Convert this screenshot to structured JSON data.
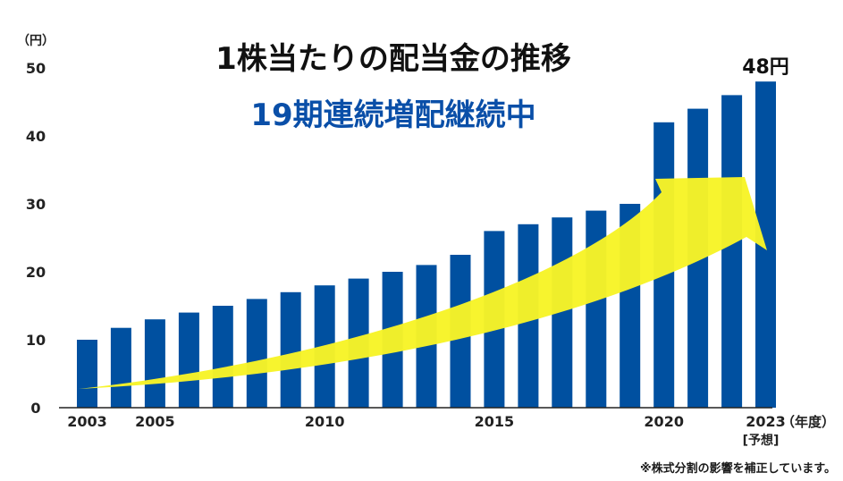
{
  "chart_data": {
    "type": "bar",
    "title": "1株当たりの配当金の推移",
    "subtitle": "19期連続増配継続中",
    "ylabel": "（円）",
    "xlabel": "（年度）",
    "ylim": [
      0,
      50
    ],
    "yticks": [
      "0",
      "10",
      "20",
      "30",
      "40",
      "50"
    ],
    "xtick_labels": [
      {
        "year": 2003,
        "label": "2003"
      },
      {
        "year": 2005,
        "label": "2005"
      },
      {
        "year": 2010,
        "label": "2010"
      },
      {
        "year": 2015,
        "label": "2015"
      },
      {
        "year": 2020,
        "label": "2020"
      },
      {
        "year": 2023,
        "label": "2023"
      }
    ],
    "forecast_label": "[予想]",
    "categories": [
      "2003",
      "2004",
      "2005",
      "2006",
      "2007",
      "2008",
      "2009",
      "2010",
      "2011",
      "2012",
      "2013",
      "2014",
      "2015",
      "2016",
      "2017",
      "2018",
      "2019",
      "2020",
      "2021",
      "2022",
      "2023"
    ],
    "values": [
      10,
      11.75,
      13,
      14,
      15,
      16,
      17,
      18,
      19,
      20,
      21,
      22.5,
      26,
      27,
      28,
      29,
      30,
      42,
      44,
      46,
      48
    ],
    "value_labels": [
      {
        "year": 2023,
        "label": "48円"
      }
    ],
    "bar_color": "#0050a0",
    "arrow_color": "#f7f427",
    "subtitle_color": "#0a4fa8"
  },
  "footnote": "※株式分割の影響を補正しています。"
}
